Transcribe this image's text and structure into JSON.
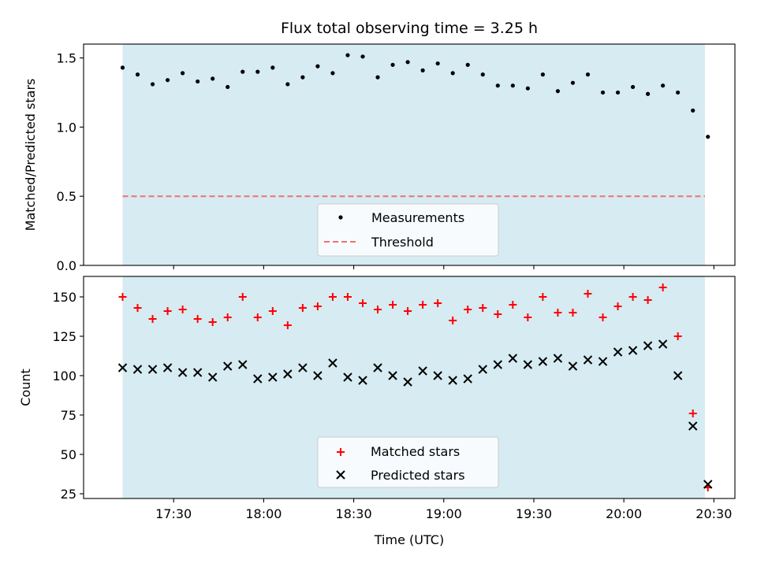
{
  "chart_data": [
    {
      "type": "scatter",
      "title": "Flux total observing time = 3.25 h",
      "xlabel": "",
      "ylabel": "Matched/Predicted stars",
      "ylim": [
        0,
        1.6
      ],
      "y_ticks": [
        "0.0",
        "0.5",
        "1.0",
        "1.5"
      ],
      "y_tick_values": [
        0,
        0.5,
        1.0,
        1.5
      ],
      "shaded_span": [
        "17:13",
        "20:27"
      ],
      "shade_color": "#add8e6",
      "legend_position": "bottom-center",
      "series": [
        {
          "name": "Measurements",
          "marker": "dot",
          "color": "#000000",
          "x": [
            "17:13",
            "17:18",
            "17:23",
            "17:28",
            "17:33",
            "17:38",
            "17:43",
            "17:48",
            "17:53",
            "17:58",
            "18:03",
            "18:08",
            "18:13",
            "18:18",
            "18:23",
            "18:28",
            "18:33",
            "18:38",
            "18:43",
            "18:48",
            "18:53",
            "18:58",
            "19:03",
            "19:08",
            "19:13",
            "19:18",
            "19:23",
            "19:28",
            "19:33",
            "19:38",
            "19:43",
            "19:48",
            "19:53",
            "19:58",
            "20:03",
            "20:08",
            "20:13",
            "20:18",
            "20:23",
            "20:28"
          ],
          "values": [
            1.43,
            1.38,
            1.31,
            1.34,
            1.39,
            1.33,
            1.35,
            1.29,
            1.4,
            1.4,
            1.43,
            1.31,
            1.36,
            1.44,
            1.39,
            1.52,
            1.51,
            1.36,
            1.45,
            1.47,
            1.41,
            1.46,
            1.39,
            1.45,
            1.38,
            1.3,
            1.3,
            1.28,
            1.38,
            1.26,
            1.32,
            1.38,
            1.25,
            1.25,
            1.29,
            1.24,
            1.3,
            1.25,
            1.12,
            0.93
          ]
        },
        {
          "name": "Threshold",
          "marker": "dashed-line",
          "color": "#f07070",
          "x": [
            "17:13",
            "20:27"
          ],
          "values": [
            0.5,
            0.5
          ]
        }
      ]
    },
    {
      "type": "scatter",
      "title": "",
      "xlabel": "Time (UTC)",
      "ylabel": "Count",
      "ylim": [
        22,
        163
      ],
      "y_ticks": [
        "25",
        "50",
        "75",
        "100",
        "125",
        "150"
      ],
      "y_tick_values": [
        25,
        50,
        75,
        100,
        125,
        150
      ],
      "x_ticks": [
        "17:30",
        "18:00",
        "18:30",
        "19:00",
        "19:30",
        "20:00",
        "20:30"
      ],
      "x_range": [
        "17:00",
        "20:37"
      ],
      "shaded_span": [
        "17:13",
        "20:27"
      ],
      "shade_color": "#add8e6",
      "legend_position": "bottom-center",
      "series": [
        {
          "name": "Matched stars",
          "marker": "plus",
          "color": "#ff0000",
          "x": [
            "17:13",
            "17:18",
            "17:23",
            "17:28",
            "17:33",
            "17:38",
            "17:43",
            "17:48",
            "17:53",
            "17:58",
            "18:03",
            "18:08",
            "18:13",
            "18:18",
            "18:23",
            "18:28",
            "18:33",
            "18:38",
            "18:43",
            "18:48",
            "18:53",
            "18:58",
            "19:03",
            "19:08",
            "19:13",
            "19:18",
            "19:23",
            "19:28",
            "19:33",
            "19:38",
            "19:43",
            "19:48",
            "19:53",
            "19:58",
            "20:03",
            "20:08",
            "20:13",
            "20:18",
            "20:23",
            "20:28"
          ],
          "values": [
            150,
            143,
            136,
            141,
            142,
            136,
            134,
            137,
            150,
            137,
            141,
            132,
            143,
            144,
            150,
            150,
            146,
            142,
            145,
            141,
            145,
            146,
            135,
            142,
            143,
            139,
            145,
            137,
            150,
            140,
            140,
            152,
            137,
            144,
            150,
            148,
            156,
            125,
            76,
            29
          ]
        },
        {
          "name": "Predicted stars",
          "marker": "x",
          "color": "#000000",
          "x": [
            "17:13",
            "17:18",
            "17:23",
            "17:28",
            "17:33",
            "17:38",
            "17:43",
            "17:48",
            "17:53",
            "17:58",
            "18:03",
            "18:08",
            "18:13",
            "18:18",
            "18:23",
            "18:28",
            "18:33",
            "18:38",
            "18:43",
            "18:48",
            "18:53",
            "18:58",
            "19:03",
            "19:08",
            "19:13",
            "19:18",
            "19:23",
            "19:28",
            "19:33",
            "19:38",
            "19:43",
            "19:48",
            "19:53",
            "19:58",
            "20:03",
            "20:08",
            "20:13",
            "20:18",
            "20:23",
            "20:28"
          ],
          "values": [
            105,
            104,
            104,
            105,
            102,
            102,
            99,
            106,
            107,
            98,
            99,
            101,
            105,
            100,
            108,
            99,
            97,
            105,
            100,
            96,
            103,
            100,
            97,
            98,
            104,
            107,
            111,
            107,
            109,
            111,
            106,
            110,
            109,
            115,
            116,
            119,
            120,
            100,
            68,
            31
          ]
        }
      ]
    }
  ]
}
